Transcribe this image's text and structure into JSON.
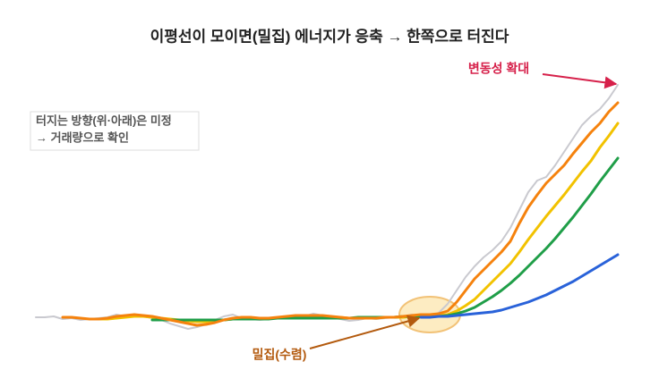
{
  "chart_data": {
    "type": "line",
    "title": "이평선이 모이면(밀집) 에너지가 응축 → 한쪽으로 터진다",
    "annotations": {
      "volatility": "변동성 확대",
      "squeeze": "밀집(수렴)",
      "note": [
        "터지는 방향(위·아래)은 미정",
        "→ 거래량으로 확인"
      ]
    },
    "xlim": [
      -1,
      67
    ],
    "ylim": [
      -20,
      300
    ],
    "x": [
      0,
      1,
      2,
      3,
      4,
      5,
      6,
      7,
      8,
      9,
      10,
      11,
      12,
      13,
      14,
      15,
      16,
      17,
      18,
      19,
      20,
      21,
      22,
      23,
      24,
      25,
      26,
      27,
      28,
      29,
      30,
      31,
      32,
      33,
      34,
      35,
      36,
      37,
      38,
      39,
      40,
      41,
      42,
      43,
      44,
      45,
      46,
      47,
      48,
      49,
      50,
      51,
      52,
      53,
      54,
      55,
      56,
      57,
      58,
      59,
      60,
      61,
      62,
      63,
      64,
      65
    ],
    "series": [
      {
        "color": "#c9c9cf",
        "values": [
          5,
          5,
          6,
          3,
          4,
          2,
          3,
          4,
          5,
          8,
          6,
          7,
          6,
          4,
          2,
          -2,
          -5,
          -8,
          -6,
          -3,
          2,
          6,
          8,
          4,
          3,
          2,
          3,
          5,
          6,
          4,
          6,
          9,
          7,
          5,
          3,
          1,
          2,
          4,
          3,
          4,
          5,
          6,
          8,
          6,
          5,
          10,
          20,
          35,
          50,
          62,
          72,
          80,
          90,
          105,
          125,
          145,
          158,
          162,
          175,
          190,
          205,
          220,
          230,
          238,
          250,
          265
        ]
      },
      {
        "color": "#f2c200",
        "values": [
          null,
          null,
          null,
          null,
          null,
          null,
          3,
          3,
          3,
          4,
          5,
          6,
          6,
          5,
          4,
          3,
          2,
          1,
          0,
          0,
          1,
          2,
          3,
          3,
          3,
          3,
          4,
          4,
          5,
          5,
          6,
          6,
          6,
          5,
          5,
          4,
          4,
          4,
          4,
          5,
          5,
          5,
          6,
          6,
          7,
          7,
          8,
          12,
          18,
          25,
          35,
          45,
          55,
          65,
          78,
          92,
          105,
          118,
          130,
          142,
          155,
          168,
          180,
          195,
          208,
          222
        ]
      },
      {
        "color": "#1f9e48",
        "values": [
          null,
          null,
          null,
          null,
          null,
          null,
          null,
          null,
          null,
          null,
          null,
          null,
          null,
          2,
          2,
          2,
          2,
          2,
          2,
          2,
          2,
          2,
          3,
          3,
          3,
          3,
          3,
          4,
          4,
          4,
          4,
          4,
          4,
          4,
          4,
          4,
          5,
          5,
          5,
          5,
          5,
          6,
          6,
          6,
          6,
          6,
          7,
          9,
          12,
          16,
          22,
          28,
          35,
          43,
          52,
          62,
          72,
          82,
          93,
          105,
          117,
          130,
          143,
          157,
          170,
          183
        ]
      },
      {
        "color": "#2962d9",
        "values": [
          null,
          null,
          null,
          null,
          null,
          null,
          null,
          null,
          null,
          null,
          null,
          null,
          null,
          null,
          null,
          null,
          null,
          null,
          null,
          null,
          null,
          null,
          null,
          null,
          null,
          null,
          null,
          null,
          null,
          null,
          null,
          null,
          null,
          null,
          null,
          null,
          null,
          null,
          null,
          null,
          null,
          null,
          null,
          5,
          5,
          6,
          6,
          7,
          8,
          9,
          10,
          11,
          13,
          16,
          19,
          22,
          26,
          30,
          35,
          40,
          45,
          51,
          57,
          63,
          69,
          75
        ]
      },
      {
        "color": "#f5820d",
        "values": [
          null,
          null,
          null,
          5,
          5,
          4,
          3,
          3,
          4,
          6,
          7,
          8,
          7,
          6,
          4,
          2,
          0,
          -2,
          -4,
          -3,
          -1,
          2,
          4,
          5,
          5,
          4,
          4,
          5,
          6,
          7,
          7,
          7,
          7,
          6,
          5,
          4,
          4,
          4,
          4,
          5,
          5,
          6,
          7,
          8,
          8,
          9,
          12,
          22,
          35,
          48,
          58,
          68,
          78,
          90,
          110,
          128,
          142,
          155,
          165,
          175,
          188,
          200,
          212,
          222,
          235,
          245
        ]
      }
    ]
  }
}
